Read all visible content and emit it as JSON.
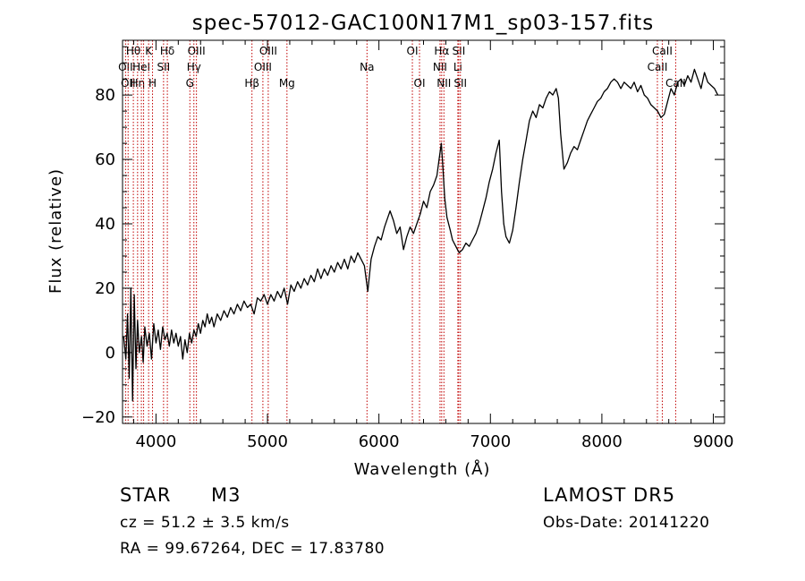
{
  "chart_data": {
    "type": "line",
    "title": "spec-57012-GAC100N17M1_sp03-157.fits",
    "xlabel": "Wavelength (Å)",
    "ylabel": "Flux (relative)",
    "xlim": [
      3700,
      9100
    ],
    "ylim": [
      -22,
      97
    ],
    "xticks": [
      4000,
      5000,
      6000,
      7000,
      8000,
      9000
    ],
    "yticks": [
      -20,
      0,
      20,
      40,
      60,
      80
    ],
    "series": [
      {
        "points": [
          [
            3710,
            5
          ],
          [
            3730,
            -2
          ],
          [
            3745,
            12
          ],
          [
            3760,
            -8
          ],
          [
            3775,
            20
          ],
          [
            3790,
            -15
          ],
          [
            3805,
            18
          ],
          [
            3820,
            -5
          ],
          [
            3835,
            10
          ],
          [
            3850,
            0
          ],
          [
            3870,
            5
          ],
          [
            3885,
            -3
          ],
          [
            3900,
            8
          ],
          [
            3920,
            2
          ],
          [
            3940,
            6
          ],
          [
            3960,
            -2
          ],
          [
            3980,
            9
          ],
          [
            4000,
            3
          ],
          [
            4020,
            7
          ],
          [
            4040,
            1
          ],
          [
            4060,
            8
          ],
          [
            4080,
            4
          ],
          [
            4100,
            6
          ],
          [
            4120,
            2
          ],
          [
            4140,
            7
          ],
          [
            4160,
            3
          ],
          [
            4180,
            6
          ],
          [
            4200,
            2
          ],
          [
            4220,
            5
          ],
          [
            4240,
            -2
          ],
          [
            4260,
            4
          ],
          [
            4280,
            0
          ],
          [
            4300,
            6
          ],
          [
            4320,
            3
          ],
          [
            4340,
            7
          ],
          [
            4360,
            5
          ],
          [
            4380,
            9
          ],
          [
            4400,
            6
          ],
          [
            4420,
            10
          ],
          [
            4440,
            8
          ],
          [
            4460,
            12
          ],
          [
            4480,
            9
          ],
          [
            4500,
            11
          ],
          [
            4520,
            8
          ],
          [
            4550,
            12
          ],
          [
            4580,
            10
          ],
          [
            4610,
            13
          ],
          [
            4640,
            11
          ],
          [
            4670,
            14
          ],
          [
            4700,
            12
          ],
          [
            4730,
            15
          ],
          [
            4760,
            13
          ],
          [
            4790,
            16
          ],
          [
            4820,
            14
          ],
          [
            4850,
            15
          ],
          [
            4880,
            12
          ],
          [
            4910,
            17
          ],
          [
            4940,
            16
          ],
          [
            4970,
            18
          ],
          [
            5000,
            15
          ],
          [
            5030,
            18
          ],
          [
            5060,
            16
          ],
          [
            5090,
            19
          ],
          [
            5120,
            17
          ],
          [
            5150,
            20
          ],
          [
            5180,
            15
          ],
          [
            5210,
            21
          ],
          [
            5240,
            19
          ],
          [
            5270,
            22
          ],
          [
            5300,
            20
          ],
          [
            5330,
            23
          ],
          [
            5360,
            21
          ],
          [
            5390,
            24
          ],
          [
            5420,
            22
          ],
          [
            5450,
            26
          ],
          [
            5480,
            23
          ],
          [
            5510,
            26
          ],
          [
            5540,
            24
          ],
          [
            5570,
            27
          ],
          [
            5600,
            25
          ],
          [
            5630,
            28
          ],
          [
            5660,
            26
          ],
          [
            5690,
            29
          ],
          [
            5720,
            26
          ],
          [
            5750,
            30
          ],
          [
            5780,
            28
          ],
          [
            5810,
            31
          ],
          [
            5840,
            29
          ],
          [
            5870,
            27
          ],
          [
            5900,
            19
          ],
          [
            5930,
            29
          ],
          [
            5960,
            33
          ],
          [
            5990,
            36
          ],
          [
            6020,
            35
          ],
          [
            6050,
            39
          ],
          [
            6080,
            42
          ],
          [
            6100,
            44
          ],
          [
            6130,
            41
          ],
          [
            6160,
            37
          ],
          [
            6190,
            39
          ],
          [
            6220,
            32
          ],
          [
            6250,
            36
          ],
          [
            6280,
            39
          ],
          [
            6310,
            37
          ],
          [
            6340,
            40
          ],
          [
            6370,
            43
          ],
          [
            6400,
            47
          ],
          [
            6430,
            45
          ],
          [
            6460,
            50
          ],
          [
            6490,
            52
          ],
          [
            6520,
            55
          ],
          [
            6540,
            60
          ],
          [
            6560,
            65
          ],
          [
            6575,
            57
          ],
          [
            6590,
            48
          ],
          [
            6610,
            42
          ],
          [
            6640,
            38
          ],
          [
            6660,
            35
          ],
          [
            6690,
            33
          ],
          [
            6720,
            31
          ],
          [
            6750,
            32
          ],
          [
            6780,
            34
          ],
          [
            6810,
            33
          ],
          [
            6840,
            35
          ],
          [
            6870,
            37
          ],
          [
            6900,
            40
          ],
          [
            6930,
            44
          ],
          [
            6960,
            48
          ],
          [
            6990,
            53
          ],
          [
            7020,
            57
          ],
          [
            7050,
            62
          ],
          [
            7080,
            66
          ],
          [
            7100,
            50
          ],
          [
            7120,
            40
          ],
          [
            7140,
            36
          ],
          [
            7170,
            34
          ],
          [
            7200,
            38
          ],
          [
            7230,
            45
          ],
          [
            7260,
            53
          ],
          [
            7290,
            60
          ],
          [
            7320,
            66
          ],
          [
            7350,
            72
          ],
          [
            7380,
            75
          ],
          [
            7410,
            73
          ],
          [
            7440,
            77
          ],
          [
            7470,
            76
          ],
          [
            7500,
            79
          ],
          [
            7530,
            81
          ],
          [
            7560,
            80
          ],
          [
            7590,
            82
          ],
          [
            7610,
            79
          ],
          [
            7630,
            68
          ],
          [
            7660,
            57
          ],
          [
            7690,
            59
          ],
          [
            7720,
            62
          ],
          [
            7750,
            64
          ],
          [
            7780,
            63
          ],
          [
            7810,
            66
          ],
          [
            7840,
            69
          ],
          [
            7870,
            72
          ],
          [
            7900,
            74
          ],
          [
            7930,
            76
          ],
          [
            7960,
            78
          ],
          [
            7990,
            79
          ],
          [
            8020,
            81
          ],
          [
            8050,
            82
          ],
          [
            8080,
            84
          ],
          [
            8110,
            85
          ],
          [
            8140,
            84
          ],
          [
            8170,
            82
          ],
          [
            8200,
            84
          ],
          [
            8230,
            83
          ],
          [
            8260,
            82
          ],
          [
            8290,
            84
          ],
          [
            8320,
            81
          ],
          [
            8350,
            83
          ],
          [
            8380,
            80
          ],
          [
            8410,
            79
          ],
          [
            8440,
            77
          ],
          [
            8470,
            76
          ],
          [
            8500,
            75
          ],
          [
            8530,
            73
          ],
          [
            8560,
            74
          ],
          [
            8590,
            78
          ],
          [
            8620,
            82
          ],
          [
            8650,
            80
          ],
          [
            8680,
            84
          ],
          [
            8710,
            85
          ],
          [
            8740,
            83
          ],
          [
            8770,
            86
          ],
          [
            8800,
            84
          ],
          [
            8830,
            88
          ],
          [
            8860,
            85
          ],
          [
            8890,
            82
          ],
          [
            8920,
            87
          ],
          [
            8950,
            84
          ],
          [
            8980,
            83
          ],
          [
            9010,
            82
          ],
          [
            9040,
            80
          ]
        ]
      }
    ],
    "line_markers": [
      {
        "wl": 3727,
        "label": "OII",
        "row": 1
      },
      {
        "wl": 3750,
        "label": "OII",
        "row": 2
      },
      {
        "wl": 3797,
        "label": "Hθ",
        "row": 0
      },
      {
        "wl": 3835,
        "label": "Hη",
        "row": 2
      },
      {
        "wl": 3869,
        "label": "HeI",
        "row": 1
      },
      {
        "wl": 3889,
        "label": "",
        "row": 1
      },
      {
        "wl": 3934,
        "label": "K",
        "row": 0
      },
      {
        "wl": 3969,
        "label": "H",
        "row": 2
      },
      {
        "wl": 4068,
        "label": "SII",
        "row": 1
      },
      {
        "wl": 4102,
        "label": "Hδ",
        "row": 0
      },
      {
        "wl": 4304,
        "label": "G",
        "row": 2
      },
      {
        "wl": 4340,
        "label": "Hγ",
        "row": 1
      },
      {
        "wl": 4363,
        "label": "OIII",
        "row": 0
      },
      {
        "wl": 4861,
        "label": "Hβ",
        "row": 2
      },
      {
        "wl": 4959,
        "label": "OIII",
        "row": 1
      },
      {
        "wl": 5007,
        "label": "OIII",
        "row": 0
      },
      {
        "wl": 5175,
        "label": "Mg",
        "row": 2
      },
      {
        "wl": 5893,
        "label": "Na",
        "row": 1
      },
      {
        "wl": 6300,
        "label": "OI",
        "row": 0
      },
      {
        "wl": 6364,
        "label": "OI",
        "row": 2
      },
      {
        "wl": 6548,
        "label": "NII",
        "row": 1
      },
      {
        "wl": 6563,
        "label": "Hα",
        "row": 0
      },
      {
        "wl": 6583,
        "label": "NII",
        "row": 2
      },
      {
        "wl": 6708,
        "label": "Li",
        "row": 1
      },
      {
        "wl": 6716,
        "label": "SII",
        "row": 0
      },
      {
        "wl": 6731,
        "label": "SII",
        "row": 2
      },
      {
        "wl": 8498,
        "label": "CaII",
        "row": 1
      },
      {
        "wl": 8542,
        "label": "CaII",
        "row": 0
      },
      {
        "wl": 8662,
        "label": "CaII",
        "row": 2
      }
    ]
  },
  "info": {
    "object_class": "STAR",
    "subclass": "M3",
    "survey": "LAMOST DR5",
    "redshift": "cz = 51.2 ± 3.5 km/s",
    "obs_date": "Obs-Date: 20141220",
    "coords": "RA =  99.67264, DEC =  17.83780"
  }
}
